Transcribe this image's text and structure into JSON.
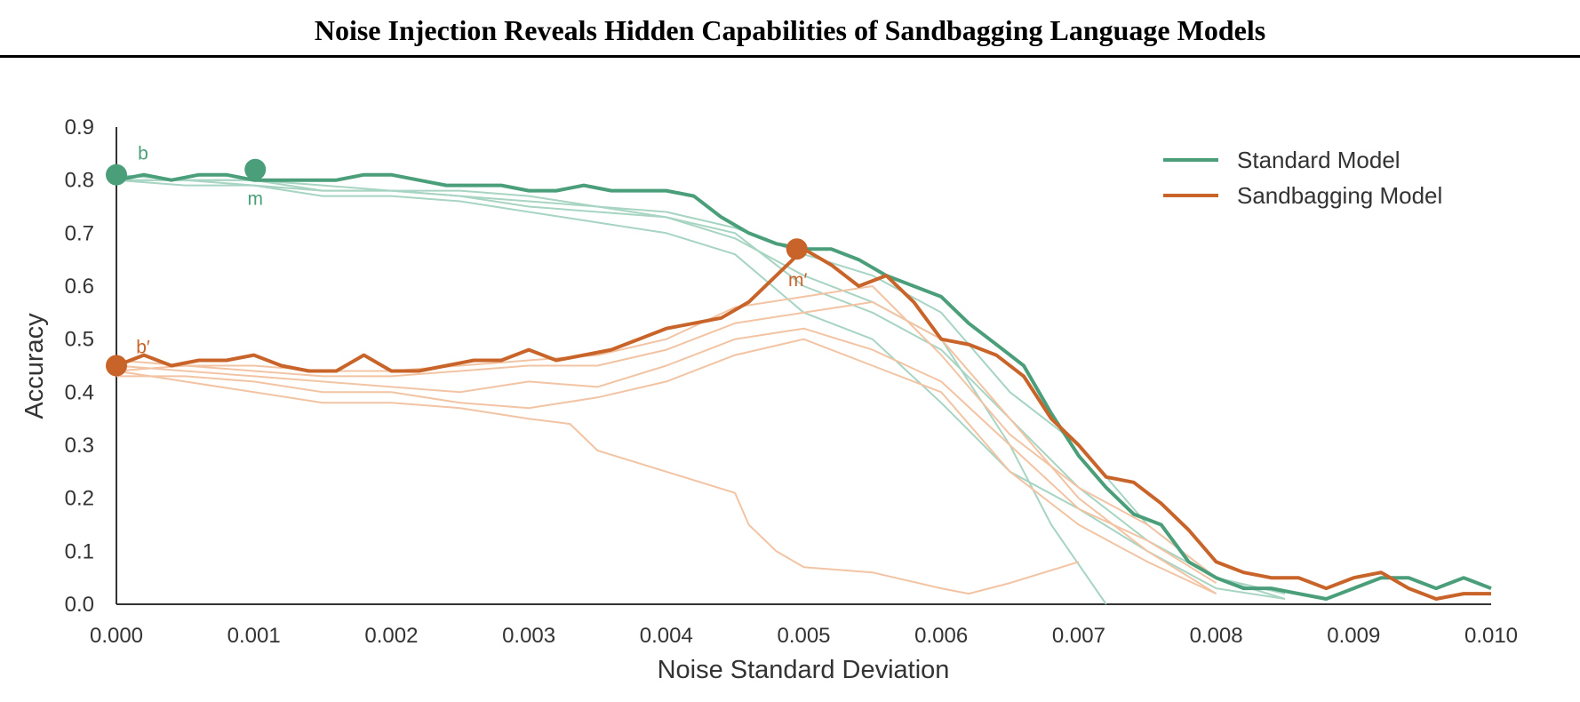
{
  "page": {
    "title": "Noise Injection Reveals Hidden Capabilities of Sandbagging Language Models"
  },
  "colors": {
    "standard": "#4a9e7a",
    "sandbag": "#c8642a",
    "standard_faint": "#a7d4c3",
    "sandbag_faint": "#f2c4a4"
  },
  "chart_data": {
    "type": "line",
    "xlabel": "Noise Standard Deviation",
    "ylabel": "Accuracy",
    "xlim": [
      0,
      0.01
    ],
    "ylim": [
      0,
      0.9
    ],
    "xticks": [
      "0.000",
      "0.001",
      "0.002",
      "0.003",
      "0.004",
      "0.005",
      "0.006",
      "0.007",
      "0.008",
      "0.009",
      "0.010"
    ],
    "yticks": [
      "0.0",
      "0.1",
      "0.2",
      "0.3",
      "0.4",
      "0.5",
      "0.6",
      "0.7",
      "0.8",
      "0.9"
    ],
    "grid": false,
    "legend": {
      "placement": "top-right",
      "entries": [
        {
          "label": "Standard Model",
          "color": "#4a9e7a"
        },
        {
          "label": "Sandbagging Model",
          "color": "#c8642a"
        }
      ]
    },
    "series": [
      {
        "name": "Standard Model",
        "color": "#4a9e7a",
        "x": [
          0,
          0.0002,
          0.0004,
          0.0006,
          0.0008,
          0.001,
          0.0012,
          0.0014,
          0.0016,
          0.0018,
          0.002,
          0.0022,
          0.0024,
          0.0026,
          0.0028,
          0.003,
          0.0032,
          0.0034,
          0.0036,
          0.0038,
          0.004,
          0.0042,
          0.0044,
          0.0046,
          0.0048,
          0.005,
          0.0052,
          0.0054,
          0.0056,
          0.0058,
          0.006,
          0.0062,
          0.0064,
          0.0066,
          0.0068,
          0.007,
          0.0072,
          0.0074,
          0.0076,
          0.0078,
          0.008,
          0.0082,
          0.0084,
          0.0086,
          0.0088,
          0.009,
          0.0092,
          0.0094,
          0.0096,
          0.0098,
          0.01
        ],
        "y": [
          0.8,
          0.81,
          0.8,
          0.81,
          0.81,
          0.8,
          0.8,
          0.8,
          0.8,
          0.81,
          0.81,
          0.8,
          0.79,
          0.79,
          0.79,
          0.78,
          0.78,
          0.79,
          0.78,
          0.78,
          0.78,
          0.77,
          0.73,
          0.7,
          0.68,
          0.67,
          0.67,
          0.65,
          0.62,
          0.6,
          0.58,
          0.53,
          0.49,
          0.45,
          0.36,
          0.28,
          0.22,
          0.17,
          0.15,
          0.08,
          0.05,
          0.03,
          0.03,
          0.02,
          0.01,
          0.03,
          0.05,
          0.05,
          0.03,
          0.05,
          0.03
        ]
      },
      {
        "name": "Sandbagging Model",
        "color": "#c8642a",
        "x": [
          0,
          0.0002,
          0.0004,
          0.0006,
          0.0008,
          0.001,
          0.0012,
          0.0014,
          0.0016,
          0.0018,
          0.002,
          0.0022,
          0.0024,
          0.0026,
          0.0028,
          0.003,
          0.0032,
          0.0034,
          0.0036,
          0.0038,
          0.004,
          0.0042,
          0.0044,
          0.0046,
          0.0048,
          0.005,
          0.0052,
          0.0054,
          0.0056,
          0.0058,
          0.006,
          0.0062,
          0.0064,
          0.0066,
          0.0068,
          0.007,
          0.0072,
          0.0074,
          0.0076,
          0.0078,
          0.008,
          0.0082,
          0.0084,
          0.0086,
          0.0088,
          0.009,
          0.0092,
          0.0094,
          0.0096,
          0.0098,
          0.01
        ],
        "y": [
          0.45,
          0.47,
          0.45,
          0.46,
          0.46,
          0.47,
          0.45,
          0.44,
          0.44,
          0.47,
          0.44,
          0.44,
          0.45,
          0.46,
          0.46,
          0.48,
          0.46,
          0.47,
          0.48,
          0.5,
          0.52,
          0.53,
          0.54,
          0.57,
          0.62,
          0.67,
          0.64,
          0.6,
          0.62,
          0.57,
          0.5,
          0.49,
          0.47,
          0.43,
          0.35,
          0.3,
          0.24,
          0.23,
          0.19,
          0.14,
          0.08,
          0.06,
          0.05,
          0.05,
          0.03,
          0.05,
          0.06,
          0.03,
          0.01,
          0.02,
          0.02
        ]
      }
    ],
    "faint_series": {
      "standard": [
        {
          "x": [
            0,
            0.0005,
            0.001,
            0.0015,
            0.002,
            0.0025,
            0.003,
            0.0035,
            0.004,
            0.0045,
            0.005,
            0.0055,
            0.006,
            0.0065,
            0.007,
            0.0075,
            0.008,
            0.0085
          ],
          "y": [
            0.8,
            0.8,
            0.79,
            0.78,
            0.78,
            0.77,
            0.75,
            0.74,
            0.73,
            0.7,
            0.6,
            0.55,
            0.48,
            0.35,
            0.22,
            0.12,
            0.05,
            0.02
          ]
        },
        {
          "x": [
            0,
            0.0005,
            0.001,
            0.0015,
            0.002,
            0.0025,
            0.003,
            0.0035,
            0.004,
            0.0045,
            0.005,
            0.0055,
            0.006,
            0.0065,
            0.007,
            0.0075,
            0.008,
            0.0085
          ],
          "y": [
            0.8,
            0.79,
            0.79,
            0.77,
            0.77,
            0.76,
            0.74,
            0.72,
            0.7,
            0.66,
            0.55,
            0.5,
            0.38,
            0.25,
            0.18,
            0.1,
            0.03,
            0.01
          ]
        },
        {
          "x": [
            0,
            0.0005,
            0.001,
            0.0015,
            0.002,
            0.0025,
            0.003,
            0.0035,
            0.004,
            0.0045,
            0.005,
            0.0055,
            0.006,
            0.0065,
            0.0068,
            0.0072
          ],
          "y": [
            0.8,
            0.8,
            0.8,
            0.79,
            0.78,
            0.77,
            0.76,
            0.75,
            0.73,
            0.69,
            0.62,
            0.57,
            0.5,
            0.3,
            0.15,
            0.0
          ]
        },
        {
          "x": [
            0,
            0.0005,
            0.001,
            0.0015,
            0.002,
            0.0025,
            0.003,
            0.0035,
            0.004,
            0.0045,
            0.005,
            0.0055,
            0.006,
            0.0065,
            0.007,
            0.0075,
            0.008,
            0.0085
          ],
          "y": [
            0.81,
            0.8,
            0.8,
            0.78,
            0.78,
            0.78,
            0.77,
            0.75,
            0.74,
            0.71,
            0.66,
            0.62,
            0.55,
            0.4,
            0.3,
            0.15,
            0.05,
            0.01
          ]
        }
      ],
      "sandbag": [
        {
          "x": [
            0,
            0.0005,
            0.001,
            0.0015,
            0.002,
            0.0025,
            0.003,
            0.0033,
            0.0035,
            0.004,
            0.0045,
            0.0046,
            0.0048,
            0.005,
            0.0055,
            0.006,
            0.0062,
            0.0065,
            0.007
          ],
          "y": [
            0.44,
            0.42,
            0.4,
            0.38,
            0.38,
            0.37,
            0.35,
            0.34,
            0.29,
            0.25,
            0.21,
            0.15,
            0.1,
            0.07,
            0.06,
            0.03,
            0.02,
            0.04,
            0.08
          ]
        },
        {
          "x": [
            0,
            0.0005,
            0.001,
            0.0015,
            0.002,
            0.0025,
            0.003,
            0.0035,
            0.004,
            0.0045,
            0.005,
            0.0055,
            0.006,
            0.0065,
            0.007,
            0.0075,
            0.008
          ],
          "y": [
            0.43,
            0.43,
            0.42,
            0.4,
            0.4,
            0.38,
            0.37,
            0.39,
            0.42,
            0.47,
            0.5,
            0.45,
            0.4,
            0.25,
            0.15,
            0.08,
            0.02
          ]
        },
        {
          "x": [
            0,
            0.0005,
            0.001,
            0.0015,
            0.002,
            0.0025,
            0.003,
            0.0035,
            0.004,
            0.0045,
            0.005,
            0.0055,
            0.006,
            0.0065,
            0.007,
            0.0075,
            0.008
          ],
          "y": [
            0.45,
            0.44,
            0.43,
            0.42,
            0.41,
            0.4,
            0.42,
            0.41,
            0.45,
            0.5,
            0.52,
            0.48,
            0.42,
            0.3,
            0.18,
            0.12,
            0.04
          ]
        },
        {
          "x": [
            0,
            0.0005,
            0.001,
            0.0015,
            0.002,
            0.0025,
            0.003,
            0.0035,
            0.004,
            0.0045,
            0.005,
            0.0055,
            0.006,
            0.0065,
            0.007,
            0.0075,
            0.008
          ],
          "y": [
            0.44,
            0.45,
            0.44,
            0.43,
            0.43,
            0.44,
            0.45,
            0.45,
            0.48,
            0.53,
            0.55,
            0.57,
            0.5,
            0.35,
            0.2,
            0.1,
            0.02
          ]
        },
        {
          "x": [
            0,
            0.0005,
            0.001,
            0.0015,
            0.002,
            0.0025,
            0.003,
            0.0035,
            0.004,
            0.0045,
            0.005,
            0.0055,
            0.006,
            0.0065,
            0.007,
            0.0075,
            0.008
          ],
          "y": [
            0.46,
            0.45,
            0.45,
            0.44,
            0.44,
            0.45,
            0.46,
            0.47,
            0.5,
            0.56,
            0.58,
            0.6,
            0.47,
            0.32,
            0.22,
            0.15,
            0.05
          ]
        }
      ]
    },
    "points": [
      {
        "label": "b",
        "series": "Standard Model",
        "x": 0.0,
        "y": 0.81,
        "color": "#4a9e7a"
      },
      {
        "label": "m",
        "series": "Standard Model",
        "x": 0.00101,
        "y": 0.82,
        "color": "#4a9e7a"
      },
      {
        "label": "b′",
        "series": "Sandbagging Model",
        "x": 0.0,
        "y": 0.45,
        "color": "#c8642a"
      },
      {
        "label": "m′",
        "series": "Sandbagging Model",
        "x": 0.00495,
        "y": 0.67,
        "color": "#c8642a"
      }
    ]
  }
}
